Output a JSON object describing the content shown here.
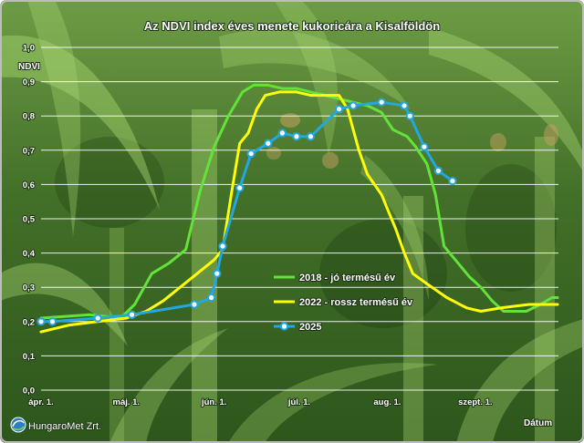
{
  "chart_data": {
    "type": "line",
    "title": "Az NDVI index éves menete kukoricára a Kisalföldön",
    "xlabel": "Dátum",
    "ylabel": "NDVI",
    "xlim": [
      "04-01",
      "09-30"
    ],
    "ylim": [
      0,
      1
    ],
    "grid": true,
    "legend_position": "lower-right",
    "x_ticks": [
      {
        "date": "04-01",
        "label": "ápr. 1."
      },
      {
        "date": "05-01",
        "label": "máj. 1."
      },
      {
        "date": "06-01",
        "label": "jún. 1."
      },
      {
        "date": "07-01",
        "label": "júl. 1."
      },
      {
        "date": "08-01",
        "label": "aug. 1."
      },
      {
        "date": "09-01",
        "label": "szept. 1."
      }
    ],
    "y_ticks": [
      {
        "value": 0.0,
        "label": "0,0"
      },
      {
        "value": 0.1,
        "label": "0,1"
      },
      {
        "value": 0.2,
        "label": "0,2"
      },
      {
        "value": 0.3,
        "label": "0,3"
      },
      {
        "value": 0.4,
        "label": "0,4"
      },
      {
        "value": 0.5,
        "label": "0,5"
      },
      {
        "value": 0.6,
        "label": "0,6"
      },
      {
        "value": 0.7,
        "label": "0,7"
      },
      {
        "value": 0.8,
        "label": "0,8"
      },
      {
        "value": 0.9,
        "label": "0,9"
      },
      {
        "value": 1.0,
        "label": "1,0"
      }
    ],
    "series": [
      {
        "name": "2018 - jó termésű év",
        "color": "#63e23a",
        "markers": false,
        "x": [
          "04-01",
          "04-18",
          "04-29",
          "05-04",
          "05-10",
          "05-16",
          "05-22",
          "05-27",
          "06-01",
          "06-06",
          "06-11",
          "06-15",
          "06-20",
          "06-25",
          "06-30",
          "07-05",
          "07-10",
          "07-15",
          "07-20",
          "07-25",
          "07-30",
          "08-03",
          "08-08",
          "08-11",
          "08-15",
          "08-18",
          "08-21",
          "08-25",
          "08-30",
          "09-03",
          "09-07",
          "09-11",
          "09-19",
          "09-24",
          "09-28",
          "09-30"
        ],
        "y": [
          0.21,
          0.22,
          0.21,
          0.25,
          0.34,
          0.37,
          0.41,
          0.58,
          0.71,
          0.8,
          0.87,
          0.89,
          0.89,
          0.88,
          0.88,
          0.87,
          0.86,
          0.85,
          0.84,
          0.83,
          0.81,
          0.76,
          0.74,
          0.71,
          0.66,
          0.57,
          0.42,
          0.38,
          0.33,
          0.3,
          0.26,
          0.23,
          0.23,
          0.25,
          0.27,
          0.27
        ]
      },
      {
        "name": "2022 - rossz termésű év",
        "color": "#ffff00",
        "markers": false,
        "x": [
          "04-01",
          "04-11",
          "04-21",
          "05-01",
          "05-08",
          "05-14",
          "05-20",
          "05-26",
          "06-01",
          "06-04",
          "06-07",
          "06-10",
          "06-13",
          "06-16",
          "06-19",
          "06-24",
          "06-30",
          "07-05",
          "07-10",
          "07-15",
          "07-18",
          "07-22",
          "07-25",
          "07-30",
          "08-04",
          "08-07",
          "08-10",
          "08-15",
          "08-22",
          "08-29",
          "09-03",
          "09-10",
          "09-20",
          "09-30"
        ],
        "y": [
          0.17,
          0.19,
          0.2,
          0.21,
          0.23,
          0.26,
          0.3,
          0.34,
          0.38,
          0.41,
          0.57,
          0.72,
          0.75,
          0.82,
          0.86,
          0.87,
          0.87,
          0.86,
          0.86,
          0.86,
          0.82,
          0.7,
          0.63,
          0.57,
          0.47,
          0.4,
          0.34,
          0.31,
          0.27,
          0.24,
          0.23,
          0.24,
          0.25,
          0.25
        ]
      },
      {
        "name": "2025",
        "color": "#22a7e0",
        "markers": true,
        "x": [
          "04-01",
          "04-05",
          "04-21",
          "05-03",
          "05-25",
          "05-31",
          "06-02",
          "06-04",
          "06-10",
          "06-14",
          "06-20",
          "06-25",
          "06-30",
          "07-05",
          "07-15",
          "07-20",
          "07-30",
          "08-07",
          "08-09",
          "08-14",
          "08-19",
          "08-24"
        ],
        "y": [
          0.2,
          0.2,
          0.21,
          0.22,
          0.25,
          0.27,
          0.34,
          0.42,
          0.59,
          0.69,
          0.72,
          0.75,
          0.74,
          0.74,
          0.82,
          0.83,
          0.84,
          0.83,
          0.8,
          0.71,
          0.64,
          0.61
        ]
      }
    ]
  },
  "logo": {
    "text": "HungaroMet Zrt.",
    "icon": "hungaromet-logo-icon"
  }
}
